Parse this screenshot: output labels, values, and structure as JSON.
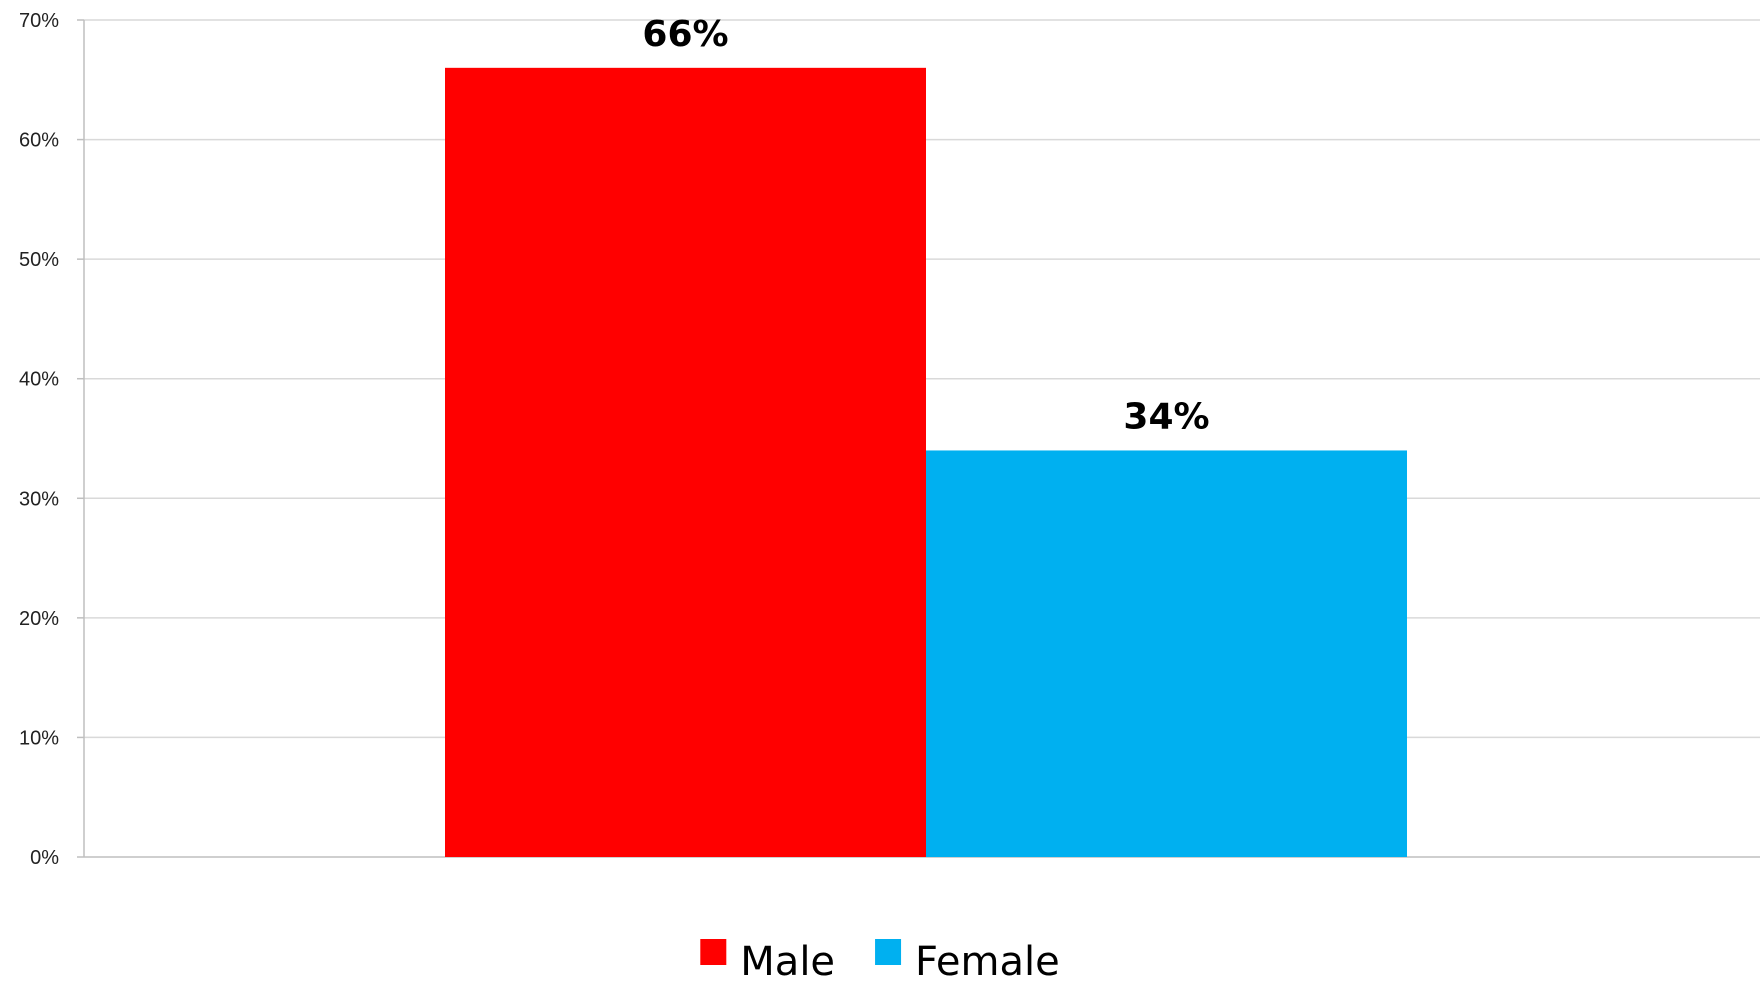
{
  "chart_data": {
    "type": "bar",
    "title": "",
    "xlabel": "",
    "ylabel": "",
    "ylim": [
      0,
      70
    ],
    "y_ticks": [
      0,
      10,
      20,
      30,
      40,
      50,
      60,
      70
    ],
    "y_tick_format": "percent",
    "grid": true,
    "legend_position": "bottom",
    "series": [
      {
        "name": "Male",
        "value": 66,
        "label": "66%",
        "color": "#FF0000"
      },
      {
        "name": "Female",
        "value": 34,
        "label": "34%",
        "color": "#00B0F0"
      }
    ]
  }
}
